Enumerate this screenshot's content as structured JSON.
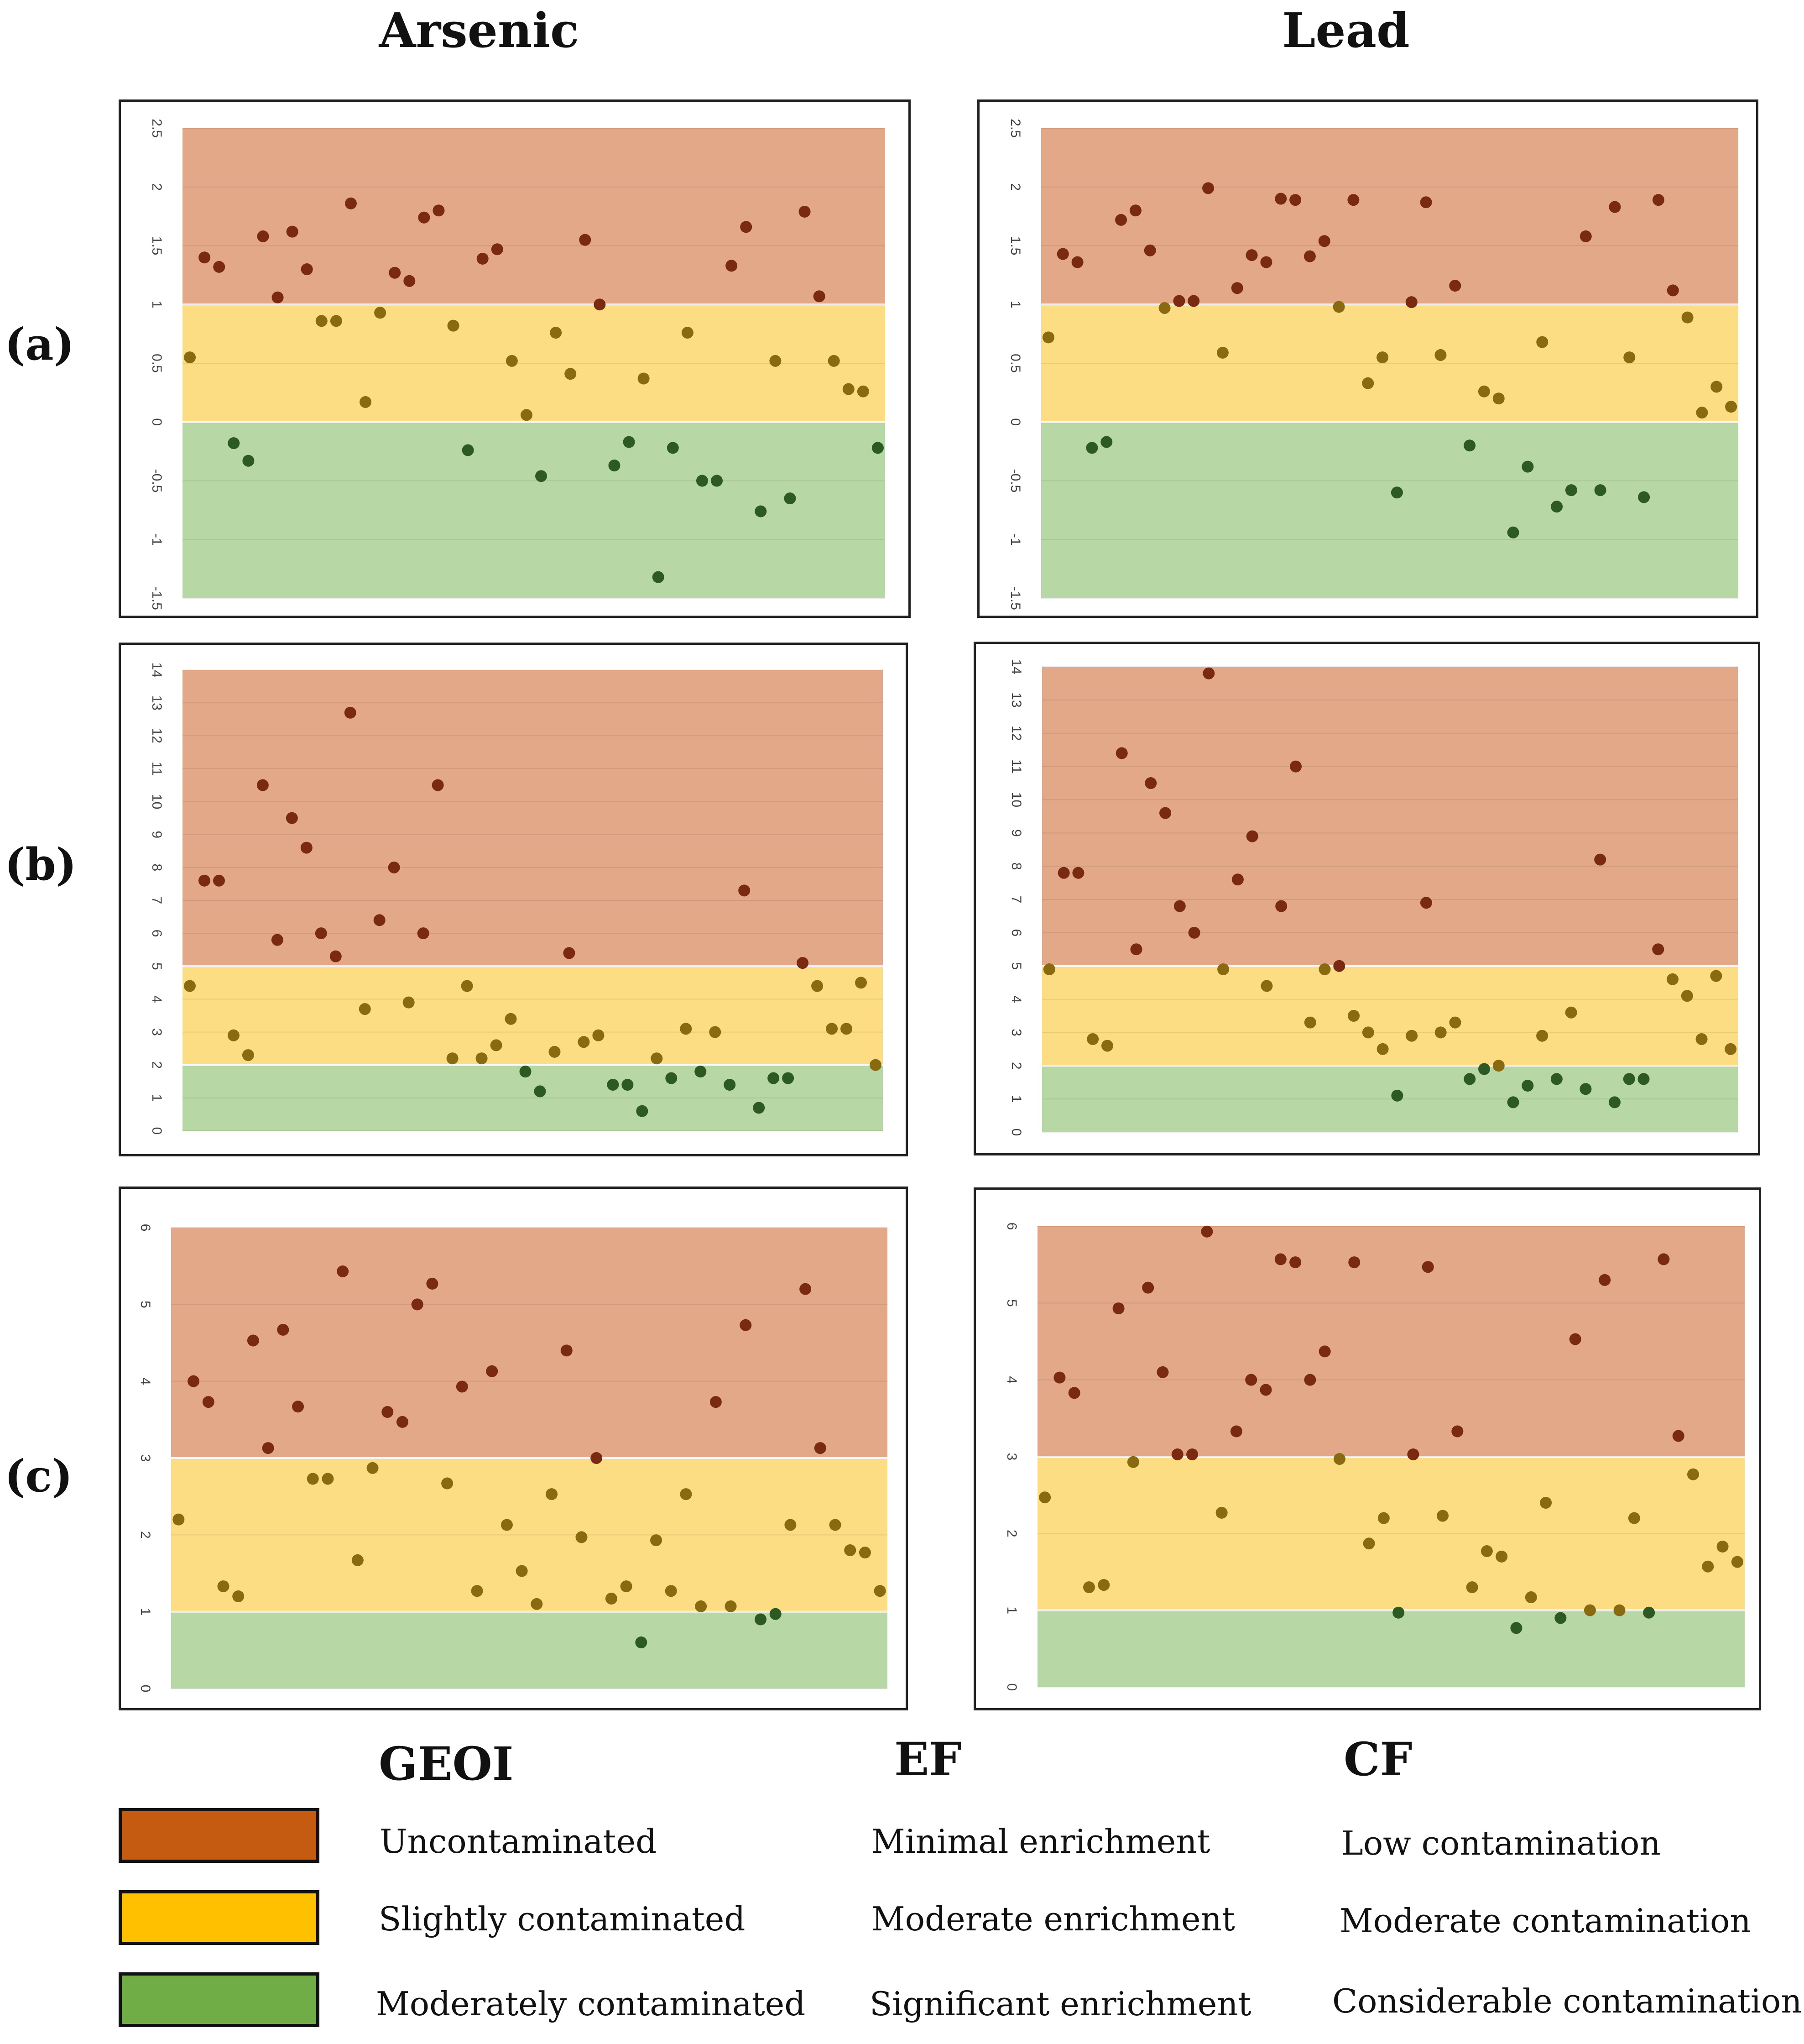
{
  "columns": [
    "Arsenic",
    "Lead"
  ],
  "rows": [
    "(a)",
    "(b)",
    "(c)"
  ],
  "colors": {
    "uncontaminated": "#e2a888",
    "slightly": "#fcdd84",
    "moderately": "#b7d7a5",
    "dot_high": "#7a2a10",
    "dot_mid": "#8a6a10",
    "dot_low": "#2d5a22",
    "legend_high": "#c55a11",
    "legend_mid": "#ffc000",
    "legend_low": "#70ad47"
  },
  "legend": {
    "headers": [
      "GEOI",
      "EF",
      "CF"
    ],
    "rows": [
      {
        "color_key": "legend_high",
        "labels": [
          "Uncontaminated",
          "Minimal enrichment",
          "Low contamination"
        ]
      },
      {
        "color_key": "legend_mid",
        "labels": [
          "Slightly contaminated",
          "Moderate enrichment",
          "Moderate contamination"
        ]
      },
      {
        "color_key": "legend_low",
        "labels": [
          "Moderately  contaminated",
          "Significant  enrichment",
          "Considerable contamination"
        ]
      }
    ]
  },
  "chart_data": [
    {
      "type": "scatter",
      "panel": "(a)",
      "column": "Arsenic",
      "ylim": [
        -1.5,
        2.5
      ],
      "ticks": [
        "-1.5",
        "-1",
        "-0.5",
        "0",
        "0.5",
        "1",
        "1.5",
        "2",
        "2.5"
      ],
      "bands": [
        [
          -1.5,
          0,
          "moderately"
        ],
        [
          0,
          1,
          "slightly"
        ],
        [
          1,
          2.5,
          "uncontaminated"
        ]
      ],
      "values": [
        0.55,
        1.4,
        1.32,
        -0.18,
        -0.33,
        1.58,
        1.06,
        1.62,
        1.3,
        0.86,
        0.86,
        1.86,
        0.17,
        0.93,
        1.27,
        1.2,
        1.74,
        1.8,
        0.82,
        -0.24,
        1.39,
        1.47,
        0.52,
        0.06,
        -0.46,
        0.76,
        0.41,
        1.55,
        1.0,
        -0.37,
        -0.17,
        0.37,
        -1.32,
        -0.22,
        0.76,
        -0.5,
        -0.5,
        1.33,
        1.66,
        -0.76,
        0.52,
        -0.65,
        1.79,
        1.07,
        0.52,
        0.28,
        0.26,
        -0.22
      ]
    },
    {
      "type": "scatter",
      "panel": "(a)",
      "column": "Lead",
      "ylim": [
        -1.5,
        2.5
      ],
      "ticks": [
        "-1.5",
        "-1",
        "-0.5",
        "0",
        "0.5",
        "1",
        "1.5",
        "2",
        "2.5"
      ],
      "bands": [
        [
          -1.5,
          0,
          "moderately"
        ],
        [
          0,
          1,
          "slightly"
        ],
        [
          1,
          2.5,
          "uncontaminated"
        ]
      ],
      "values": [
        0.72,
        1.43,
        1.36,
        -0.22,
        -0.17,
        1.72,
        1.8,
        1.46,
        0.97,
        1.03,
        1.03,
        1.99,
        0.59,
        1.14,
        1.42,
        1.36,
        1.9,
        1.89,
        1.41,
        1.54,
        0.98,
        1.89,
        0.33,
        0.55,
        -0.6,
        1.02,
        1.87,
        0.57,
        1.16,
        -0.2,
        0.26,
        0.2,
        -0.94,
        -0.38,
        0.68,
        -0.72,
        -0.58,
        1.58,
        -0.58,
        1.83,
        0.55,
        -0.64,
        1.89,
        1.12,
        0.89,
        0.08,
        0.3,
        0.13
      ]
    },
    {
      "type": "scatter",
      "panel": "(b)",
      "column": "Arsenic",
      "ylim": [
        0,
        14
      ],
      "ticks": [
        "0",
        "1",
        "2",
        "3",
        "4",
        "5",
        "6",
        "7",
        "8",
        "9",
        "10",
        "11",
        "12",
        "13",
        "14"
      ],
      "bands": [
        [
          0,
          2,
          "moderately"
        ],
        [
          2,
          5,
          "slightly"
        ],
        [
          5,
          14,
          "uncontaminated"
        ]
      ],
      "values": [
        4.4,
        7.6,
        7.6,
        2.9,
        2.3,
        10.5,
        5.8,
        9.5,
        8.6,
        6.0,
        5.3,
        12.7,
        3.7,
        6.4,
        8.0,
        3.9,
        6.0,
        10.5,
        2.2,
        4.4,
        2.2,
        2.6,
        3.4,
        1.8,
        1.2,
        2.4,
        5.4,
        2.7,
        2.9,
        1.4,
        1.4,
        0.6,
        2.2,
        1.6,
        3.1,
        1.8,
        3.0,
        1.4,
        7.3,
        0.7,
        1.6,
        1.6,
        5.1,
        4.4,
        3.1,
        3.1,
        4.5,
        2.0
      ]
    },
    {
      "type": "scatter",
      "panel": "(b)",
      "column": "Lead",
      "ylim": [
        0,
        14
      ],
      "ticks": [
        "0",
        "1",
        "2",
        "3",
        "4",
        "5",
        "6",
        "7",
        "8",
        "9",
        "10",
        "11",
        "12",
        "13",
        "14"
      ],
      "bands": [
        [
          0,
          2,
          "moderately"
        ],
        [
          2,
          5,
          "slightly"
        ],
        [
          5,
          14,
          "uncontaminated"
        ]
      ],
      "values": [
        4.9,
        7.8,
        7.8,
        2.8,
        2.6,
        11.4,
        5.5,
        10.5,
        9.6,
        6.8,
        6.0,
        13.8,
        4.9,
        7.6,
        8.9,
        4.4,
        6.8,
        11.0,
        3.3,
        4.9,
        5.0,
        3.5,
        3.0,
        2.5,
        1.1,
        2.9,
        6.9,
        3.0,
        3.3,
        1.6,
        1.9,
        2.0,
        0.9,
        1.4,
        2.9,
        1.6,
        3.6,
        1.3,
        8.2,
        0.9,
        1.6,
        1.6,
        5.5,
        4.6,
        4.1,
        2.8,
        4.7,
        2.5
      ]
    },
    {
      "type": "scatter",
      "panel": "(c)",
      "column": "Arsenic",
      "ylim": [
        0,
        6
      ],
      "ticks": [
        "0",
        "1",
        "2",
        "3",
        "4",
        "5",
        "6"
      ],
      "bands": [
        [
          0,
          1,
          "moderately"
        ],
        [
          1,
          3,
          "slightly"
        ],
        [
          3,
          6,
          "uncontaminated"
        ]
      ],
      "values": [
        2.2,
        4.0,
        3.73,
        1.33,
        1.2,
        4.53,
        3.13,
        4.67,
        3.67,
        2.73,
        2.73,
        5.43,
        1.67,
        2.87,
        3.6,
        3.47,
        5.0,
        5.27,
        2.67,
        3.93,
        1.27,
        4.13,
        2.13,
        1.53,
        1.1,
        2.53,
        4.4,
        1.97,
        3.0,
        1.17,
        1.33,
        0.6,
        1.93,
        1.27,
        2.53,
        1.07,
        3.73,
        1.07,
        4.73,
        0.9,
        0.97,
        2.13,
        5.2,
        3.13,
        2.13,
        1.8,
        1.77,
        1.27
      ]
    },
    {
      "type": "scatter",
      "panel": "(c)",
      "column": "Lead",
      "ylim": [
        0,
        6
      ],
      "ticks": [
        "0",
        "1",
        "2",
        "3",
        "4",
        "5",
        "6"
      ],
      "bands": [
        [
          0,
          1,
          "moderately"
        ],
        [
          1,
          3,
          "slightly"
        ],
        [
          3,
          6,
          "uncontaminated"
        ]
      ],
      "values": [
        2.47,
        4.03,
        3.83,
        1.3,
        1.33,
        4.93,
        2.93,
        5.2,
        4.1,
        3.03,
        3.03,
        5.93,
        2.27,
        3.33,
        4.0,
        3.87,
        5.57,
        5.53,
        4.0,
        4.37,
        2.97,
        5.53,
        1.87,
        2.2,
        0.97,
        3.03,
        5.47,
        2.23,
        3.33,
        1.3,
        1.77,
        1.7,
        0.77,
        1.17,
        2.4,
        0.9,
        4.53,
        1.0,
        5.3,
        1.0,
        2.2,
        0.97,
        5.57,
        3.27,
        2.77,
        1.57,
        1.83,
        1.63
      ]
    }
  ]
}
